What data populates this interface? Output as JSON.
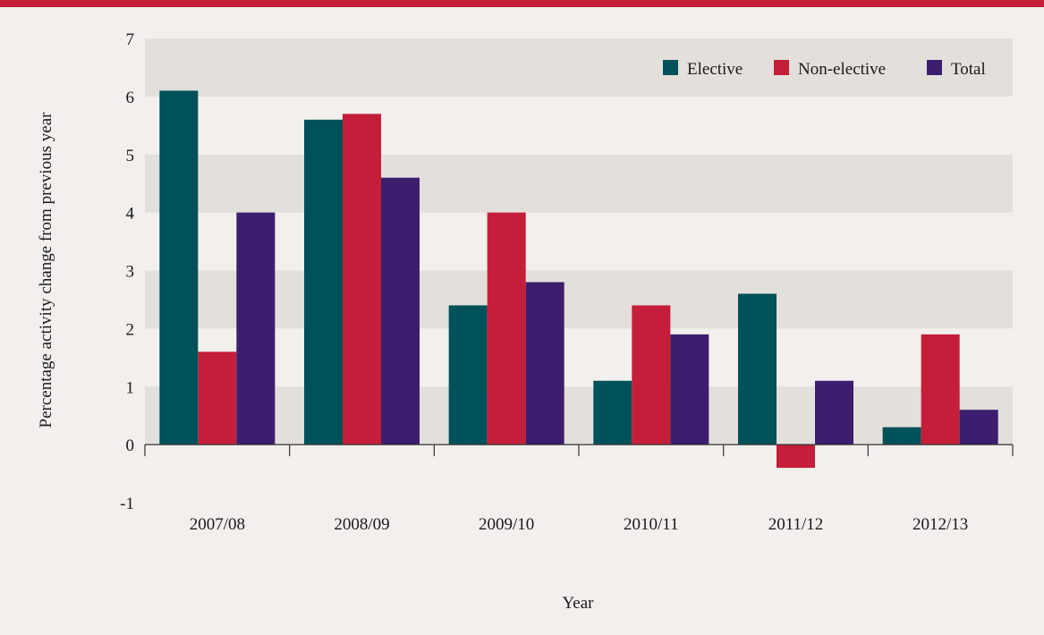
{
  "colors": {
    "accent_bar": "#c41e3a",
    "elective": "#00525a",
    "non_elective": "#c41e3a",
    "total": "#3b1f6e",
    "band": "#e3dfdb",
    "background": "#f2efec",
    "axis": "#333333"
  },
  "chart_data": {
    "type": "bar",
    "title": "",
    "xlabel": "Year",
    "ylabel": "Percentage activity change from previous year",
    "categories": [
      "2007/08",
      "2008/09",
      "2009/10",
      "2010/11",
      "2011/12",
      "2012/13"
    ],
    "series": [
      {
        "name": "Elective",
        "values": [
          6.1,
          5.6,
          2.4,
          1.1,
          2.6,
          0.3
        ]
      },
      {
        "name": "Non-elective",
        "values": [
          1.6,
          5.7,
          4.0,
          2.4,
          -0.4,
          1.9
        ]
      },
      {
        "name": "Total",
        "values": [
          4.0,
          4.6,
          2.8,
          1.9,
          1.1,
          0.6
        ]
      }
    ],
    "ylim": [
      -1,
      7
    ],
    "yticks": [
      "-1",
      "0",
      "1",
      "2",
      "3",
      "4",
      "5",
      "6",
      "7"
    ],
    "grid": "alternating horizontal bands",
    "legend_position": "top-right"
  }
}
